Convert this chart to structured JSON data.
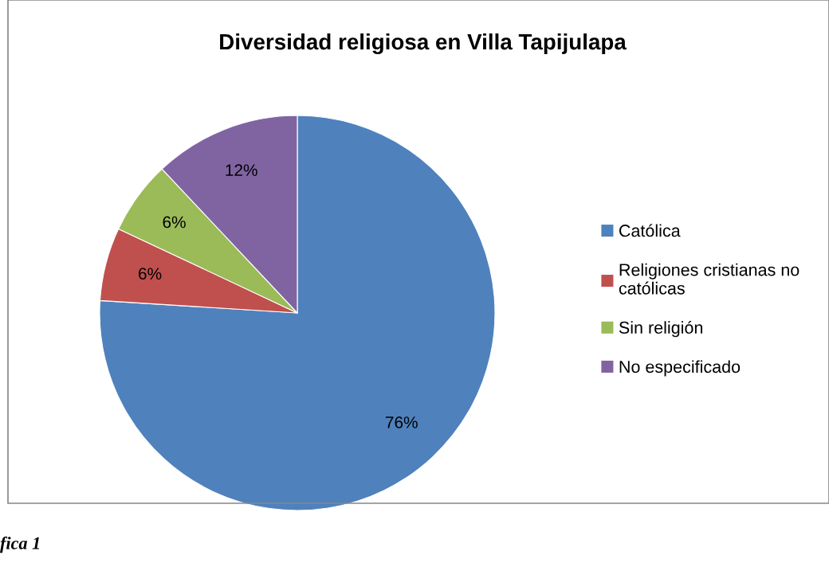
{
  "chart_data": {
    "type": "pie",
    "title": "Diversidad religiosa en Villa Tapijulapa",
    "categories": [
      "Católica",
      "Religiones cristianas no católicas",
      "Sin religión",
      "No especificado"
    ],
    "values": [
      76,
      6,
      6,
      12
    ],
    "colors": [
      "#4f81bd",
      "#c0504d",
      "#9bbb59",
      "#8064a2"
    ],
    "value_labels": [
      "76%",
      "6%",
      "6%",
      "12%"
    ],
    "legend": "right",
    "annotations": [
      "fica 1"
    ]
  }
}
